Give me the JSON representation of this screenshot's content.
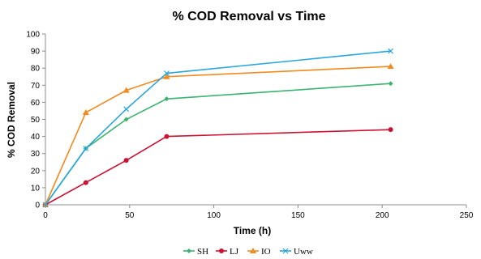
{
  "chart_data": {
    "type": "line",
    "title": "% COD Removal vs Time",
    "xlabel": "Time (h)",
    "ylabel": "% COD Removal",
    "xlim": [
      0,
      250
    ],
    "ylim": [
      0,
      100
    ],
    "xticks": [
      0,
      50,
      100,
      150,
      200,
      250
    ],
    "yticks": [
      0,
      10,
      20,
      30,
      40,
      50,
      60,
      70,
      80,
      90,
      100
    ],
    "grid": false,
    "legend_position": "bottom",
    "series": [
      {
        "name": "SH",
        "color": "#3cb371",
        "marker": "diamond",
        "x": [
          0,
          24,
          48,
          72,
          205
        ],
        "y": [
          0,
          33,
          50,
          62,
          71
        ]
      },
      {
        "name": "LJ",
        "color": "#cc1133",
        "marker": "circle",
        "x": [
          0,
          24,
          48,
          72,
          205
        ],
        "y": [
          0,
          13,
          26,
          40,
          44
        ]
      },
      {
        "name": "IO",
        "color": "#f28a1e",
        "marker": "triangle",
        "x": [
          0,
          24,
          48,
          72,
          205
        ],
        "y": [
          0,
          54,
          67,
          75,
          81
        ]
      },
      {
        "name": "Uww",
        "color": "#2aa7dd",
        "marker": "x",
        "x": [
          0,
          24,
          48,
          72,
          205
        ],
        "y": [
          0,
          33,
          56,
          77,
          90
        ]
      }
    ]
  }
}
